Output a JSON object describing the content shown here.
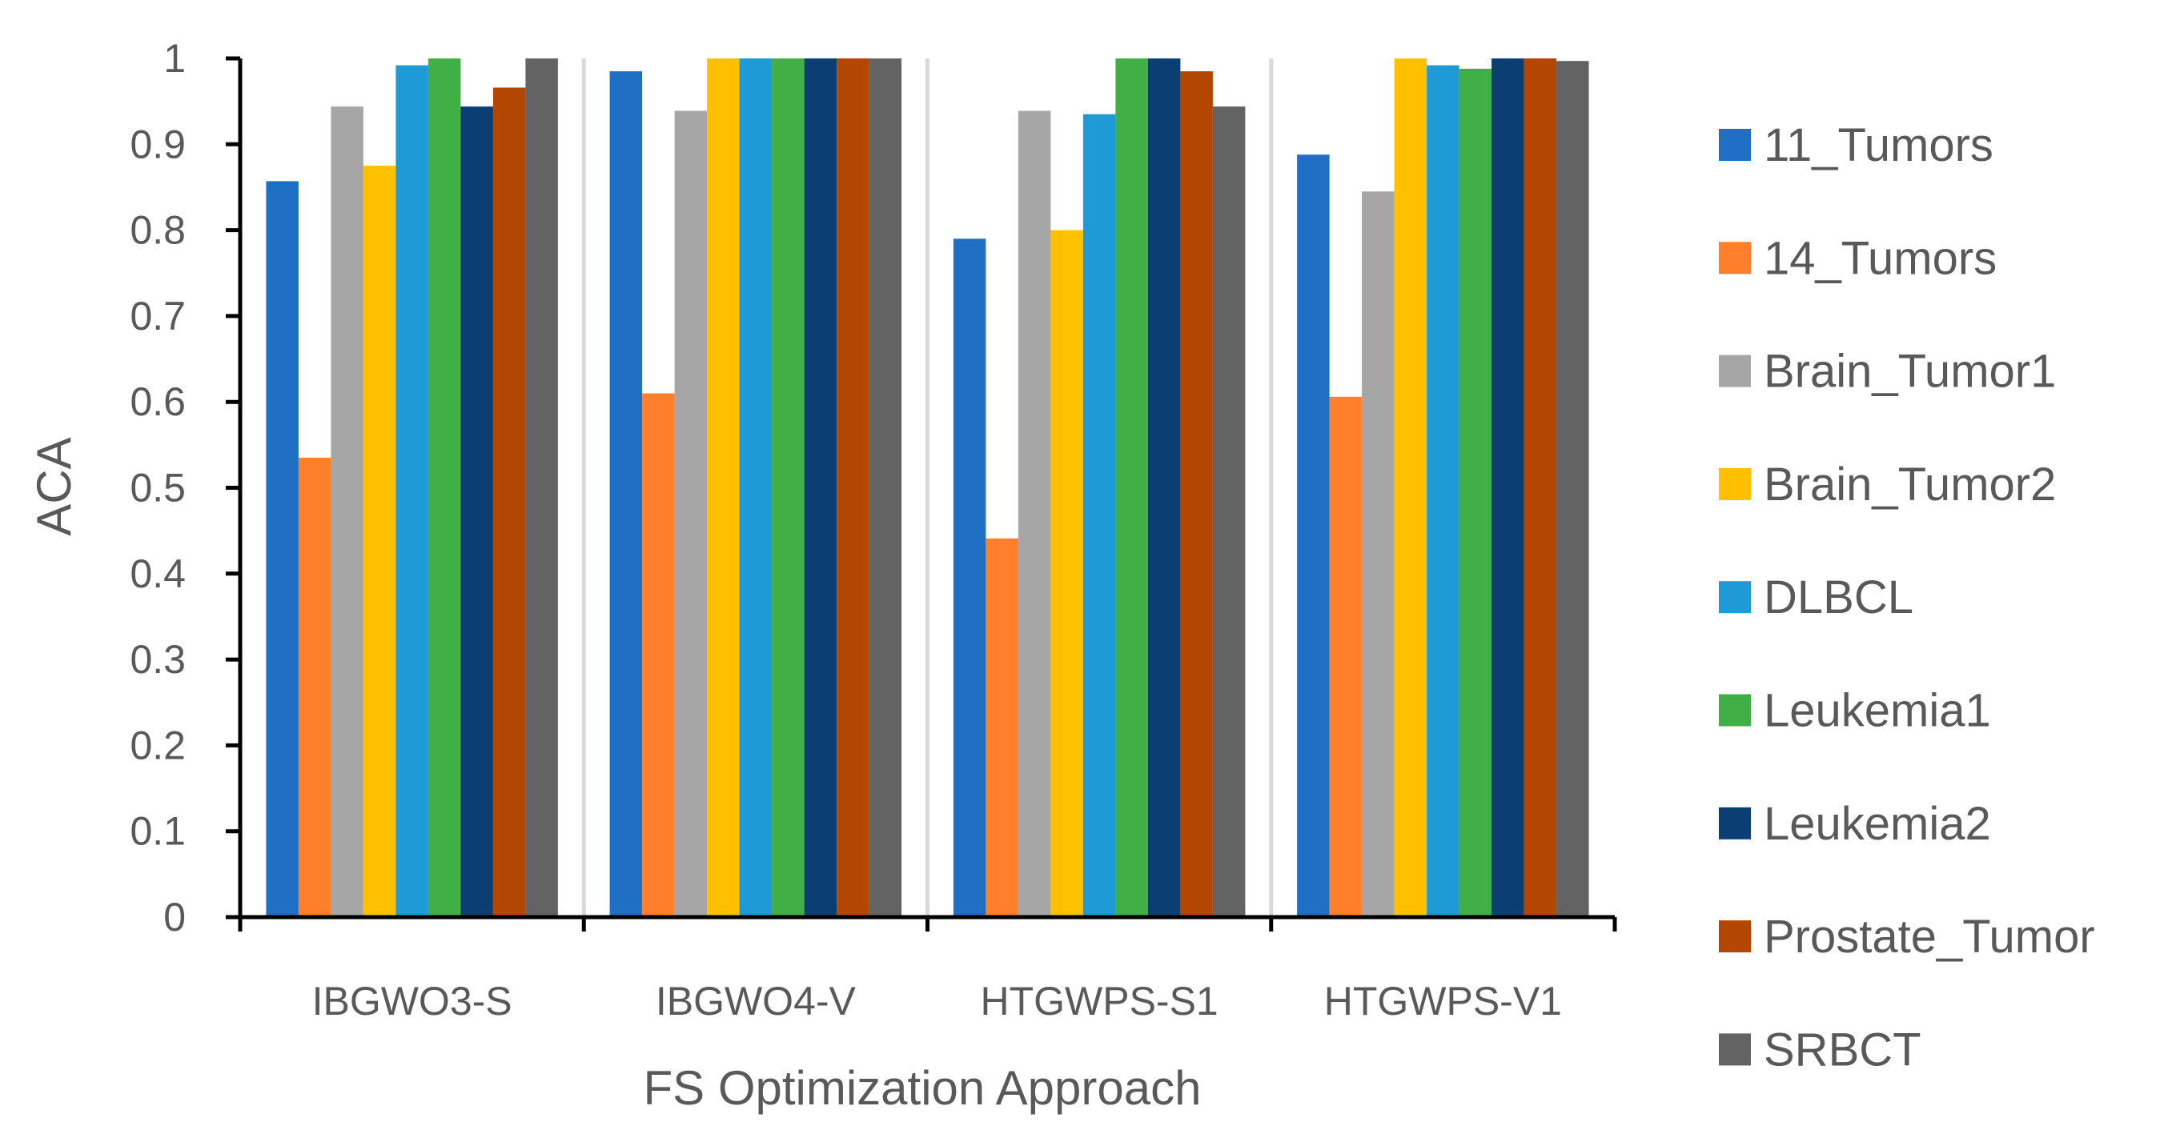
{
  "chart_data": {
    "type": "bar",
    "title": "",
    "xlabel": "FS Optimization Approach",
    "ylabel": "ACA",
    "ylim": [
      0,
      1
    ],
    "yticks": [
      "0",
      "0.1",
      "0.2",
      "0.3",
      "0.4",
      "0.5",
      "0.6",
      "0.7",
      "0.8",
      "0.9",
      "1"
    ],
    "grid": false,
    "legend_position": "right",
    "categories": [
      "IBGWO3-S",
      "IBGWO4-V",
      "HTGWPS-S1",
      "HTGWPS-V1"
    ],
    "series": [
      {
        "name": "11_Tumors",
        "color": "#1F6FC5",
        "values": [
          0.857,
          0.985,
          0.79,
          0.888
        ]
      },
      {
        "name": "14_Tumors",
        "color": "#FF7F2A",
        "values": [
          0.535,
          0.61,
          0.441,
          0.606
        ]
      },
      {
        "name": "Brain_Tumor1",
        "color": "#A6A6A6",
        "values": [
          0.944,
          0.939,
          0.939,
          0.845
        ]
      },
      {
        "name": "Brain_Tumor2",
        "color": "#FFC000",
        "values": [
          0.875,
          1.0,
          0.8,
          1.0
        ]
      },
      {
        "name": "DLBCL",
        "color": "#1E9BD7",
        "values": [
          0.992,
          1.0,
          0.935,
          0.992
        ]
      },
      {
        "name": "Leukemia1",
        "color": "#3FAF46",
        "values": [
          1.0,
          1.0,
          1.0,
          0.988
        ]
      },
      {
        "name": "Leukemia2",
        "color": "#0B3E73",
        "values": [
          0.944,
          1.0,
          1.0,
          1.0
        ]
      },
      {
        "name": "Prostate_Tumor",
        "color": "#B34600",
        "values": [
          0.966,
          1.0,
          0.985,
          1.0
        ]
      },
      {
        "name": "SRBCT",
        "color": "#636363",
        "values": [
          1.0,
          1.0,
          0.944,
          0.997
        ]
      }
    ]
  }
}
